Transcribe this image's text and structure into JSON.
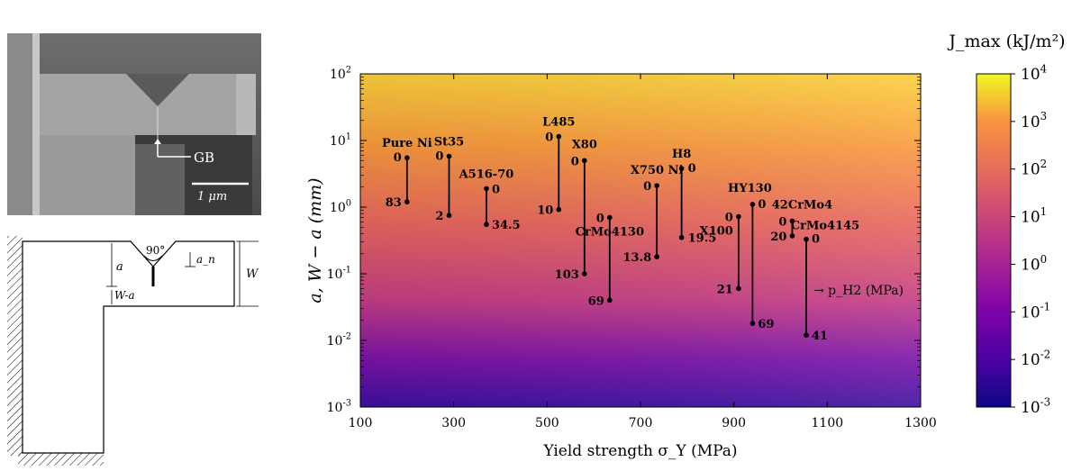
{
  "sem_panel": {
    "gb_label": "GB",
    "scale_label": "1 μm"
  },
  "schematic": {
    "angle_label": "90°",
    "a_label": "a",
    "an_label": "a_n",
    "w_label": "W",
    "wa_label": "W-a"
  },
  "chart_data": {
    "type": "scatter",
    "title": "",
    "xlabel": "Yield strength σ_Y (MPa)",
    "ylabel": "a, W − a (mm)",
    "xlim": [
      100,
      1300
    ],
    "ylim": [
      0.001,
      100
    ],
    "yscale": "log",
    "xticks": [
      "100",
      "300",
      "500",
      "700",
      "900",
      "1100",
      "1300"
    ],
    "yticks": [
      {
        "value": 0.001,
        "label": "10",
        "exp": "-3"
      },
      {
        "value": 0.01,
        "label": "10",
        "exp": "-2"
      },
      {
        "value": 0.1,
        "label": "10",
        "exp": "-1"
      },
      {
        "value": 1,
        "label": "10",
        "exp": "0"
      },
      {
        "value": 10,
        "label": "10",
        "exp": "1"
      },
      {
        "value": 100,
        "label": "10",
        "exp": "2"
      }
    ],
    "background": "J_max heatmap, increasing with σ_Y and with length",
    "arrow_annotation": "→ p_H2 (MPa)",
    "materials": [
      {
        "name": "Pure Ni",
        "sigma_y": 200,
        "top": 5.5,
        "bottom": 1.2,
        "p_top": "0",
        "p_bottom": "83"
      },
      {
        "name": "St35",
        "sigma_y": 290,
        "top": 5.8,
        "bottom": 0.75,
        "p_top": "0",
        "p_bottom": "2"
      },
      {
        "name": "A516-70",
        "sigma_y": 370,
        "top": 1.9,
        "bottom": 0.55,
        "p_top": "0",
        "p_bottom": "34.5"
      },
      {
        "name": "L485",
        "sigma_y": 525,
        "top": 11.5,
        "bottom": 0.92,
        "p_top": "0",
        "p_bottom": "10"
      },
      {
        "name": "X80",
        "sigma_y": 580,
        "top": 5.0,
        "bottom": 0.1,
        "p_top": "0",
        "p_bottom": "103"
      },
      {
        "name": "CrMo4130",
        "sigma_y": 634,
        "top": 0.7,
        "bottom": 0.04,
        "p_top": "0",
        "p_bottom": "69"
      },
      {
        "name": "X750 Ni",
        "sigma_y": 735,
        "top": 2.1,
        "bottom": 0.18,
        "p_top": "0",
        "p_bottom": "13.8"
      },
      {
        "name": "H8",
        "sigma_y": 788,
        "top": 3.8,
        "bottom": 0.35,
        "p_top": "0",
        "p_bottom": "19.5"
      },
      {
        "name": "X100",
        "sigma_y": 910,
        "top": 0.72,
        "bottom": 0.06,
        "p_top": "0",
        "p_bottom": "21"
      },
      {
        "name": "HY130",
        "sigma_y": 940,
        "top": 1.1,
        "bottom": 0.018,
        "p_top": "0",
        "p_bottom": "69"
      },
      {
        "name": "42CrMo4",
        "sigma_y": 1025,
        "top": 0.62,
        "bottom": 0.37,
        "p_top": "0",
        "p_bottom": "20"
      },
      {
        "name": "CrMo4145",
        "sigma_y": 1055,
        "top": 0.33,
        "bottom": 0.012,
        "p_top": "0",
        "p_bottom": "41"
      }
    ],
    "colorbar": {
      "title": "J_max (kJ/m²)",
      "range": [
        0.001,
        10000
      ],
      "ticks": [
        {
          "label": "10",
          "exp": "4"
        },
        {
          "label": "10",
          "exp": "3"
        },
        {
          "label": "10",
          "exp": "2"
        },
        {
          "label": "10",
          "exp": "1"
        },
        {
          "label": "10",
          "exp": "0"
        },
        {
          "label": "10",
          "exp": "-1"
        },
        {
          "label": "10",
          "exp": "-2"
        },
        {
          "label": "10",
          "exp": "-3"
        }
      ]
    }
  }
}
